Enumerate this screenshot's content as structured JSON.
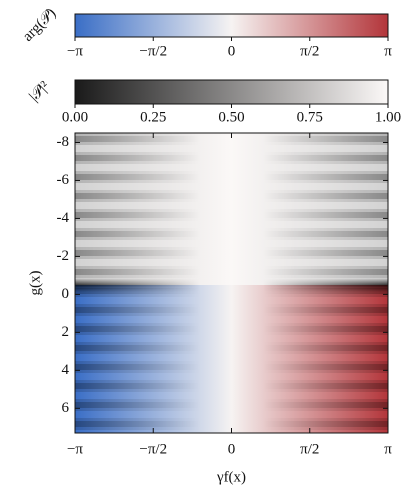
{
  "chart_data": [
    {
      "type": "colorbar",
      "label": "arg(𝒫)",
      "colormap": [
        "#3a6ec6",
        "#f6f3f2",
        "#b3353a"
      ],
      "xlim": [
        -3.14159,
        3.14159
      ],
      "xticks": [
        {
          "value": -3.14159,
          "label": "−π"
        },
        {
          "value": -1.5708,
          "label": "−π/2"
        },
        0,
        {
          "value": 1.5708,
          "label": "π/2"
        },
        {
          "value": 3.14159,
          "label": "π"
        }
      ]
    },
    {
      "type": "colorbar",
      "label": "|𝒫|²",
      "colormap": [
        "#1a1a1a",
        "#fbf8f7"
      ],
      "xlim": [
        0,
        1
      ],
      "xticks": [
        {
          "value": 0,
          "label": "0.00"
        },
        {
          "value": 0.25,
          "label": "0.25"
        },
        {
          "value": 0.5,
          "label": "0.50"
        },
        {
          "value": 0.75,
          "label": "0.75"
        },
        {
          "value": 1,
          "label": "1.00"
        }
      ]
    },
    {
      "type": "heatmap",
      "xlabel": "γf(x)",
      "ylabel": "g(x)",
      "xlim": [
        -3.14159,
        3.14159
      ],
      "xticks": [
        {
          "value": -3.14159,
          "label": "−π"
        },
        {
          "value": -1.5708,
          "label": "−π/2"
        },
        0,
        {
          "value": 1.5708,
          "label": "π/2"
        },
        {
          "value": 3.14159,
          "label": "π"
        }
      ],
      "ylim": [
        -8.5,
        7.3
      ],
      "yticks": [
        -8,
        -6,
        -4,
        -2,
        0,
        2,
        4,
        6
      ]
    }
  ]
}
